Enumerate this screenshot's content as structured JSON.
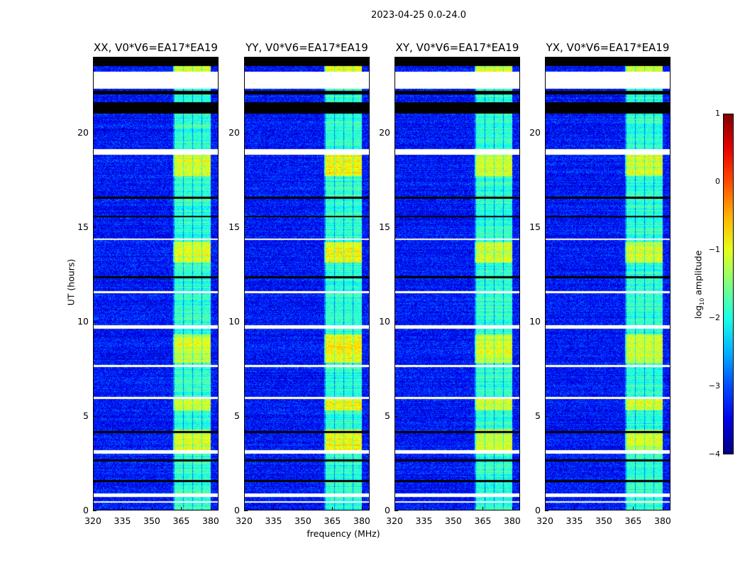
{
  "chart_data": {
    "type": "heatmap",
    "title": "2023-04-25 0.0-24.0",
    "xlabel": "frequency (MHz)",
    "ylabel": "UT (hours)",
    "xlim": [
      320,
      384
    ],
    "ylim": [
      0,
      24
    ],
    "xticks": [
      "320",
      "335",
      "350",
      "365",
      "380"
    ],
    "yticks": [
      "0",
      "5",
      "10",
      "15",
      "20"
    ],
    "panels": [
      {
        "title": "XX, V0*V6=EA17*EA19"
      },
      {
        "title": "YY, V0*V6=EA17*EA19"
      },
      {
        "title": "XY, V0*V6=EA17*EA19"
      },
      {
        "title": "YX, V0*V6=EA17*EA19"
      }
    ],
    "colorbar": {
      "label": "log",
      "label_sub": "10",
      "label_rest": " amplitude",
      "colormap": "jet",
      "range": [
        -4,
        1
      ],
      "ticks": [
        "1",
        "0",
        "−1",
        "−2",
        "−3",
        "−4"
      ]
    },
    "background_level": -3.3,
    "rfi_band_mhz": [
      361,
      380
    ],
    "strong_rfi_hours": [
      [
        3.2,
        4.3
      ],
      [
        5.3,
        5.9
      ],
      [
        7.8,
        9.3
      ],
      [
        13.1,
        14.2
      ],
      [
        17.7,
        19.0
      ],
      [
        23.0,
        24.0
      ]
    ],
    "flagged_white_hours": [
      [
        0.4,
        0.5
      ],
      [
        0.7,
        0.9
      ],
      [
        3.0,
        3.2
      ],
      [
        5.9,
        6.0
      ],
      [
        7.6,
        7.7
      ],
      [
        9.6,
        9.8
      ],
      [
        11.5,
        11.6
      ],
      [
        14.3,
        14.4
      ],
      [
        18.8,
        19.1
      ],
      [
        22.3,
        23.2
      ]
    ],
    "flagged_black_hours": [
      [
        1.5,
        1.6
      ],
      [
        2.6,
        2.7
      ],
      [
        4.1,
        4.2
      ],
      [
        12.3,
        12.4
      ],
      [
        15.5,
        15.6
      ],
      [
        16.5,
        16.6
      ],
      [
        21.0,
        21.6
      ],
      [
        22.0,
        22.2
      ],
      [
        23.5,
        24.0
      ]
    ]
  }
}
